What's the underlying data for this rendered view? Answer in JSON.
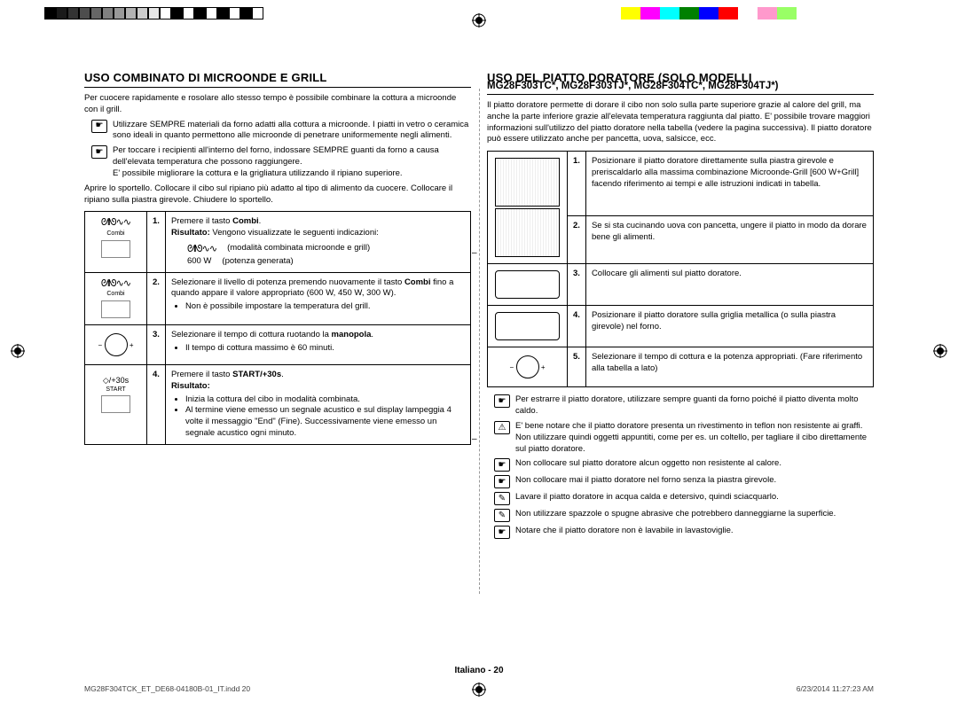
{
  "colorbar1": [
    "#000000",
    "#1a1a1a",
    "#333333",
    "#4d4d4d",
    "#666666",
    "#808080",
    "#999999",
    "#b3b3b3",
    "#cccccc",
    "#e6e6e6",
    "#ffffff",
    "#000000",
    "#ffffff",
    "#000000",
    "#ffffff",
    "#000000",
    "#ffffff",
    "#000000",
    "#ffffff"
  ],
  "colorbar2": [
    "#ffff00",
    "#ff00ff",
    "#00ffff",
    "#008000",
    "#0000ff",
    "#ff0000",
    "#ffffff",
    "#ff99cc",
    "#99ff66",
    "#ffffff"
  ],
  "left": {
    "heading": "USO COMBINATO DI MICROONDE E GRILL",
    "intro": "Per cuocere rapidamente e rosolare allo stesso tempo è possibile combinare la cottura a microonde con il grill.",
    "note1": "Utilizzare SEMPRE materiali da forno adatti alla cottura a microonde. I piatti in vetro o ceramica sono ideali in quanto permettono alle microonde di penetrare uniformemente negli alimenti.",
    "note2": "Per toccare i recipienti all'interno del forno, indossare SEMPRE guanti da forno a causa dell'elevata temperatura che possono raggiungere.",
    "note2b": "E' possibile migliorare la cottura e la grigliatura utilizzando il ripiano superiore.",
    "intro2": "Aprire lo sportello. Collocare il cibo sul ripiano più adatto al tipo di alimento da cuocere. Collocare il ripiano sulla piastra girevole. Chiudere lo sportello.",
    "steps": [
      {
        "icon": "combi",
        "num": "1.",
        "body": "Premere il tasto <b>Combi</b>.<br><b>Risultato:</b> Vengono visualizzate le seguenti indicazioni:",
        "extra": [
          [
            "sym",
            "(modalità combinata microonde e grill)"
          ],
          [
            "600 W",
            "(potenza generata)"
          ]
        ]
      },
      {
        "icon": "combi",
        "num": "2.",
        "body": "Selezionare il livello di potenza premendo nuovamente il tasto <b>Combi</b> fino a quando appare il valore appropriato (600 W, 450 W, 300 W).",
        "bullets": [
          "Non è possibile impostare la temperatura del grill."
        ]
      },
      {
        "icon": "knob",
        "num": "3.",
        "body": "Selezionare il tempo di cottura ruotando la <b>manopola</b>.",
        "bullets": [
          "Il tempo di cottura massimo è 60 minuti."
        ]
      },
      {
        "icon": "start",
        "num": "4.",
        "body": "Premere il tasto <b>START/+30s</b>.<br><b>Risultato:</b>",
        "bullets": [
          "Inizia la cottura del cibo in modalità combinata.",
          "Al termine viene emesso un segnale acustico e sul display lampeggia 4 volte il messaggio \"End\" (Fine). Successivamente viene emesso un segnale acustico ogni minuto."
        ]
      }
    ]
  },
  "right": {
    "heading": "USO DEL PIATTO DORATORE (SOLO MODELLI",
    "heading2": "MG28F303TC*, MG28F303TJ*, MG28F304TC*, MG28F304TJ*)",
    "intro": "Il piatto doratore permette di dorare il cibo non solo sulla parte superiore grazie al calore del grill, ma anche la parte inferiore grazie all'elevata temperatura raggiunta dal piatto. E' possibile trovare maggiori informazioni sull'utilizzo del piatto doratore nella tabella (vedere la pagina successiva). Il piatto doratore può essere utilizzato anche per pancetta, uova, salsicce, ecc.",
    "steps": [
      {
        "img": "microwave",
        "num": "1.",
        "body": "Posizionare il piatto doratore direttamente sulla piastra girevole e preriscaldarlo alla massima combinazione Microonde-Grill [600 W+Grill] facendo riferimento ai tempi e alle istruzioni indicati in tabella."
      },
      {
        "img": "microwave",
        "num": "2.",
        "body": "Se si sta cucinando uova con pancetta, ungere il piatto in modo da dorare bene gli alimenti."
      },
      {
        "img": "plate",
        "num": "3.",
        "body": "Collocare gli alimenti sul piatto doratore."
      },
      {
        "img": "plate",
        "num": "4.",
        "body": "Posizionare il piatto doratore sulla griglia metallica (o sulla piastra girevole) nel forno."
      },
      {
        "img": "knob",
        "num": "5.",
        "body": "Selezionare il tempo di cottura e la potenza appropriati. (Fare riferimento alla tabella a lato)"
      }
    ],
    "warnings": [
      {
        "icon": "hand",
        "text": "Per estrarre il piatto doratore, utilizzare sempre guanti da forno poiché il piatto diventa molto caldo."
      },
      {
        "icon": "warn",
        "text": "E' bene notare che il piatto doratore presenta un rivestimento in teflon non resistente ai graffi. Non utilizzare quindi oggetti appuntiti, come per es. un coltello, per tagliare il cibo direttamente sul piatto doratore."
      },
      {
        "icon": "hand",
        "text": "Non collocare sul piatto doratore alcun oggetto non resistente al calore."
      },
      {
        "icon": "hand",
        "text": "Non collocare mai il piatto doratore nel forno senza la piastra girevole."
      },
      {
        "icon": "wash",
        "text": "Lavare il piatto doratore in acqua calda e detersivo, quindi sciacquarlo."
      },
      {
        "icon": "wash",
        "text": "Non utilizzare spazzole o spugne abrasive che potrebbero danneggiarne la superficie."
      },
      {
        "icon": "hand",
        "text": "Notare che il piatto doratore non è lavabile in lavastoviglie."
      }
    ]
  },
  "footer": {
    "center": "Italiano - 20",
    "left": "MG28F304TCK_ET_DE68-04180B-01_IT.indd   20",
    "right": "6/23/2014   11:27:23 AM"
  }
}
